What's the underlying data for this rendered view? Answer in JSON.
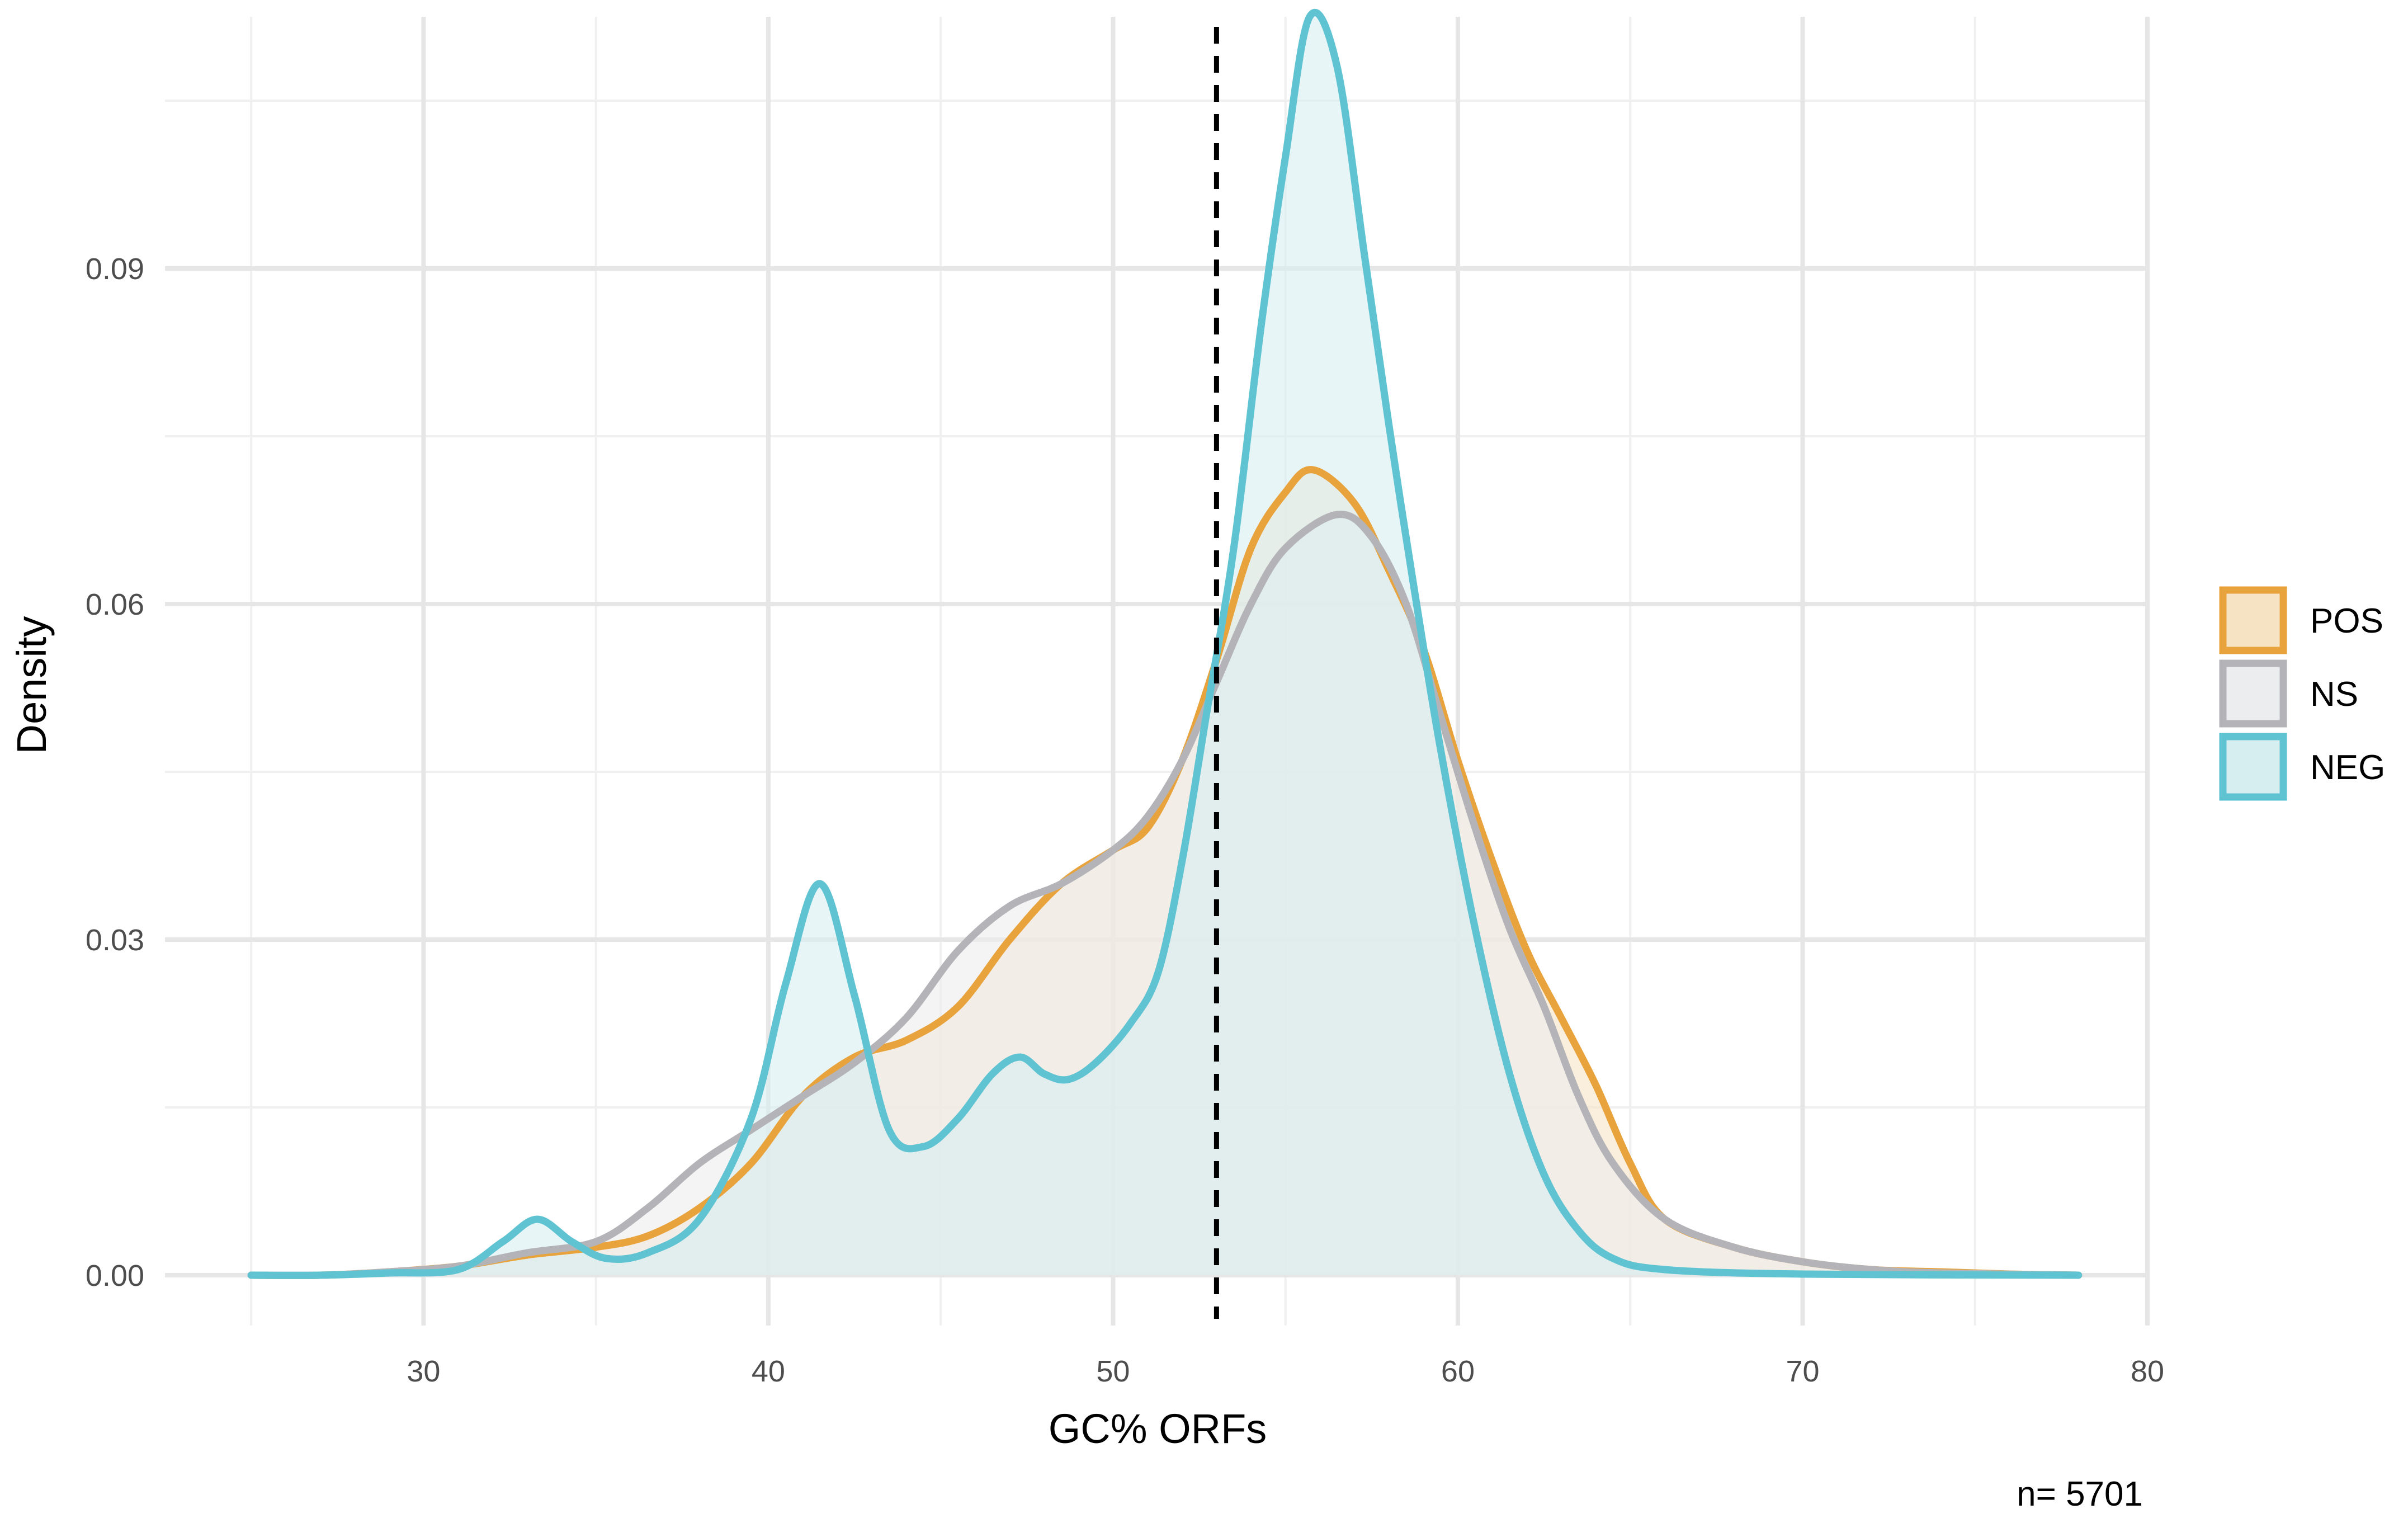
{
  "chart_data": {
    "type": "area",
    "xlabel": "GC% ORFs",
    "ylabel": "Density",
    "caption": "n= 5701",
    "xlim": [
      22.5,
      80
    ],
    "ylim": [
      -0.0045,
      0.1125
    ],
    "x_ticks": [
      "30",
      "40",
      "50",
      "60",
      "70",
      "80"
    ],
    "y_ticks": [
      "0.00",
      "0.03",
      "0.06",
      "0.09"
    ],
    "grid": true,
    "legend_position": "right",
    "vline": {
      "x": 53,
      "style": "dashed",
      "color": "#000000"
    },
    "series": [
      {
        "name": "POS",
        "line_color": "#E8A33D",
        "fill_color": "#F6E3C4",
        "points": [
          [
            25,
            0
          ],
          [
            27,
            0
          ],
          [
            29,
            0.0003
          ],
          [
            31,
            0.0008
          ],
          [
            33,
            0.0018
          ],
          [
            35,
            0.0025
          ],
          [
            36.5,
            0.0035
          ],
          [
            38,
            0.006
          ],
          [
            39.5,
            0.01
          ],
          [
            41,
            0.016
          ],
          [
            42.5,
            0.0195
          ],
          [
            44,
            0.021
          ],
          [
            45.5,
            0.024
          ],
          [
            47,
            0.03
          ],
          [
            48.5,
            0.035
          ],
          [
            50,
            0.038
          ],
          [
            51,
            0.04
          ],
          [
            52,
            0.046
          ],
          [
            53,
            0.055
          ],
          [
            54,
            0.065
          ],
          [
            55,
            0.07
          ],
          [
            55.8,
            0.072
          ],
          [
            57,
            0.069
          ],
          [
            58,
            0.063
          ],
          [
            59,
            0.056
          ],
          [
            60,
            0.046
          ],
          [
            61,
            0.037
          ],
          [
            62,
            0.029
          ],
          [
            63,
            0.023
          ],
          [
            64,
            0.017
          ],
          [
            65,
            0.01
          ],
          [
            66,
            0.005
          ],
          [
            68,
            0.0025
          ],
          [
            70,
            0.0012
          ],
          [
            72,
            0.0005
          ],
          [
            74,
            0.0003
          ],
          [
            76,
            0.0001
          ],
          [
            78,
            0
          ]
        ]
      },
      {
        "name": "NS",
        "line_color": "#B4B4B8",
        "fill_color": "#ECEDEF",
        "points": [
          [
            25,
            0
          ],
          [
            27,
            0
          ],
          [
            29,
            0.0003
          ],
          [
            31,
            0.0008
          ],
          [
            33,
            0.002
          ],
          [
            35,
            0.003
          ],
          [
            36.5,
            0.006
          ],
          [
            38,
            0.01
          ],
          [
            39.5,
            0.013
          ],
          [
            41,
            0.016
          ],
          [
            42.5,
            0.019
          ],
          [
            44,
            0.023
          ],
          [
            45.5,
            0.029
          ],
          [
            47,
            0.033
          ],
          [
            48.5,
            0.035
          ],
          [
            50,
            0.038
          ],
          [
            51,
            0.041
          ],
          [
            52,
            0.046
          ],
          [
            53,
            0.053
          ],
          [
            54,
            0.06
          ],
          [
            55,
            0.065
          ],
          [
            56.5,
            0.068
          ],
          [
            57.5,
            0.066
          ],
          [
            58.5,
            0.06
          ],
          [
            59.5,
            0.05
          ],
          [
            60.5,
            0.04
          ],
          [
            61.5,
            0.031
          ],
          [
            62.5,
            0.024
          ],
          [
            63.5,
            0.016
          ],
          [
            64.5,
            0.01
          ],
          [
            66,
            0.005
          ],
          [
            68,
            0.0025
          ],
          [
            70,
            0.0012
          ],
          [
            72,
            0.0005
          ],
          [
            74,
            0.0002
          ],
          [
            78,
            0
          ]
        ]
      },
      {
        "name": "NEG",
        "line_color": "#5FC3D2",
        "fill_color": "#D7EEF1",
        "points": [
          [
            25,
            0
          ],
          [
            27,
            0
          ],
          [
            29,
            0.0002
          ],
          [
            31,
            0.0005
          ],
          [
            32.3,
            0.003
          ],
          [
            33.3,
            0.005
          ],
          [
            34.3,
            0.003
          ],
          [
            35.3,
            0.0015
          ],
          [
            36.5,
            0.002
          ],
          [
            38,
            0.005
          ],
          [
            39.5,
            0.014
          ],
          [
            40.5,
            0.026
          ],
          [
            41.5,
            0.035
          ],
          [
            42.5,
            0.025
          ],
          [
            43.5,
            0.013
          ],
          [
            44.5,
            0.0115
          ],
          [
            45.5,
            0.014
          ],
          [
            46.5,
            0.018
          ],
          [
            47.3,
            0.0195
          ],
          [
            48,
            0.018
          ],
          [
            48.7,
            0.0175
          ],
          [
            49.5,
            0.019
          ],
          [
            50.5,
            0.0225
          ],
          [
            51.3,
            0.027
          ],
          [
            52,
            0.037
          ],
          [
            52.7,
            0.05
          ],
          [
            53.5,
            0.065
          ],
          [
            54.3,
            0.085
          ],
          [
            55,
            0.1
          ],
          [
            55.7,
            0.1125
          ],
          [
            56.5,
            0.108
          ],
          [
            57.3,
            0.091
          ],
          [
            58,
            0.076
          ],
          [
            58.7,
            0.062
          ],
          [
            59.5,
            0.047
          ],
          [
            60.5,
            0.031
          ],
          [
            61.5,
            0.018
          ],
          [
            62.5,
            0.009
          ],
          [
            63.5,
            0.004
          ],
          [
            64.5,
            0.0015
          ],
          [
            66,
            0.0005
          ],
          [
            70,
            0.0001
          ],
          [
            78,
            0
          ]
        ]
      }
    ]
  }
}
